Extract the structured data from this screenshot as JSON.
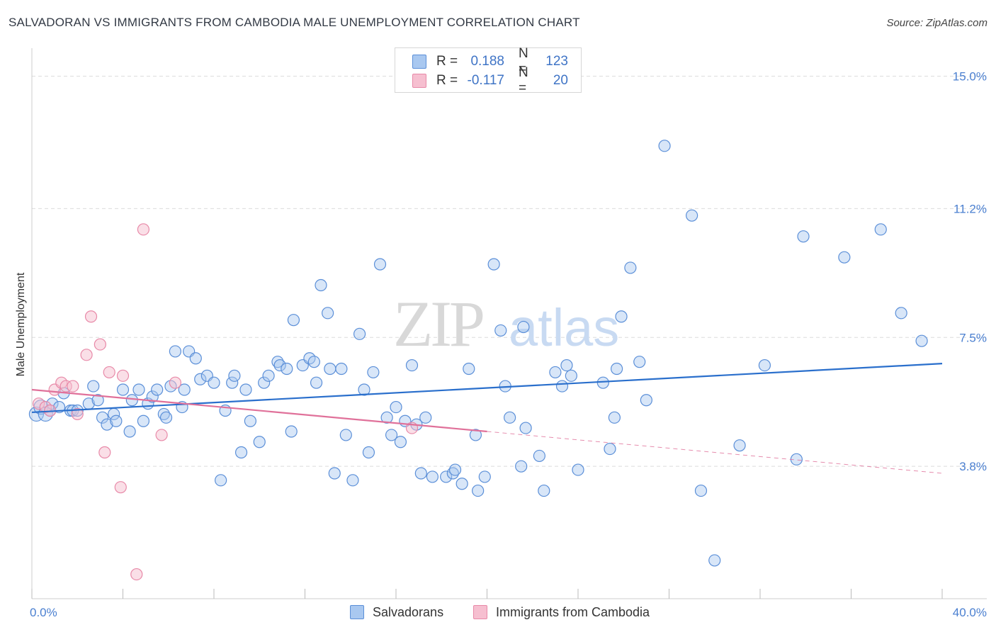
{
  "header": {
    "title": "SALVADORAN VS IMMIGRANTS FROM CAMBODIA MALE UNEMPLOYMENT CORRELATION CHART",
    "source": "Source: ZipAtlas.com"
  },
  "watermark": {
    "zip": "ZIP",
    "atlas": "atlas"
  },
  "colors": {
    "blue_fill": "#a9c8f0",
    "blue_stroke": "#5b8fd8",
    "blue_line": "#2a6fcc",
    "pink_fill": "#f6bfd0",
    "pink_stroke": "#e889a8",
    "pink_line": "#e0719a",
    "tick_text": "#4a7fd0",
    "grid": "#dcdcdc"
  },
  "legend": {
    "rows": [
      {
        "r_label": "R =",
        "r_value": "0.188",
        "n_label": "N =",
        "n_value": "123",
        "color": "#a9c8f0"
      },
      {
        "r_label": "R =",
        "r_value": "-0.117",
        "n_label": "N =",
        "n_value": "20",
        "color": "#f6bfd0"
      }
    ]
  },
  "bottom_legend": {
    "items": [
      {
        "label": "Salvadorans",
        "color": "#a9c8f0"
      },
      {
        "label": "Immigrants from Cambodia",
        "color": "#f6bfd0"
      }
    ]
  },
  "chart_data": {
    "type": "scatter",
    "title": "SALVADORAN VS IMMIGRANTS FROM CAMBODIA MALE UNEMPLOYMENT CORRELATION CHART",
    "xlabel": "",
    "ylabel": "Male Unemployment",
    "xlim": [
      0,
      40
    ],
    "ylim": [
      0,
      15.6
    ],
    "x_tick_labels": [
      {
        "value": 0,
        "label": "0.0%"
      },
      {
        "value": 40,
        "label": "40.0%"
      }
    ],
    "y_ticks": [
      {
        "value": 3.8,
        "label": "3.8%"
      },
      {
        "value": 7.5,
        "label": "7.5%"
      },
      {
        "value": 11.2,
        "label": "11.2%"
      },
      {
        "value": 15.0,
        "label": "15.0%"
      }
    ],
    "x_minor_ticks": [
      0,
      4,
      8,
      12,
      16,
      20,
      24,
      28,
      32,
      36,
      40
    ],
    "series": [
      {
        "name": "Salvadorans",
        "r": 0.188,
        "n": 123,
        "trend": {
          "x": [
            0,
            40
          ],
          "y": [
            5.35,
            6.75
          ],
          "dashed_from": null
        },
        "points": [
          [
            0.2,
            5.3
          ],
          [
            0.4,
            5.5
          ],
          [
            0.6,
            5.3
          ],
          [
            0.8,
            5.4
          ],
          [
            0.9,
            5.6
          ],
          [
            1.2,
            5.5
          ],
          [
            1.4,
            5.9
          ],
          [
            1.7,
            5.4
          ],
          [
            1.8,
            5.4
          ],
          [
            2.5,
            5.6
          ],
          [
            2.7,
            6.1
          ],
          [
            2.9,
            5.7
          ],
          [
            3.1,
            5.2
          ],
          [
            3.3,
            5.0
          ],
          [
            3.6,
            5.3
          ],
          [
            3.7,
            5.1
          ],
          [
            4.0,
            6.0
          ],
          [
            4.3,
            4.8
          ],
          [
            4.4,
            5.7
          ],
          [
            4.7,
            6.0
          ],
          [
            4.9,
            5.1
          ],
          [
            5.1,
            5.6
          ],
          [
            5.3,
            5.8
          ],
          [
            5.5,
            6.0
          ],
          [
            5.8,
            5.3
          ],
          [
            5.9,
            5.2
          ],
          [
            6.1,
            6.1
          ],
          [
            6.3,
            7.1
          ],
          [
            6.6,
            5.5
          ],
          [
            6.7,
            6.0
          ],
          [
            6.9,
            7.1
          ],
          [
            7.2,
            6.9
          ],
          [
            7.4,
            6.3
          ],
          [
            7.7,
            6.4
          ],
          [
            8.0,
            6.2
          ],
          [
            8.3,
            3.4
          ],
          [
            8.5,
            5.4
          ],
          [
            8.8,
            6.2
          ],
          [
            8.9,
            6.4
          ],
          [
            9.2,
            4.2
          ],
          [
            9.4,
            6.0
          ],
          [
            9.6,
            5.1
          ],
          [
            10.0,
            4.5
          ],
          [
            10.2,
            6.2
          ],
          [
            10.4,
            6.4
          ],
          [
            10.8,
            6.8
          ],
          [
            10.9,
            6.7
          ],
          [
            11.2,
            6.6
          ],
          [
            11.4,
            4.8
          ],
          [
            11.5,
            8.0
          ],
          [
            11.9,
            6.7
          ],
          [
            12.2,
            6.9
          ],
          [
            12.4,
            6.8
          ],
          [
            12.5,
            6.2
          ],
          [
            12.7,
            9.0
          ],
          [
            13.0,
            8.2
          ],
          [
            13.1,
            6.6
          ],
          [
            13.3,
            3.6
          ],
          [
            13.6,
            6.6
          ],
          [
            13.8,
            4.7
          ],
          [
            14.1,
            3.4
          ],
          [
            14.4,
            7.6
          ],
          [
            14.6,
            6.0
          ],
          [
            14.8,
            4.2
          ],
          [
            15.0,
            6.5
          ],
          [
            15.3,
            9.6
          ],
          [
            15.6,
            5.2
          ],
          [
            15.8,
            4.7
          ],
          [
            16.0,
            5.5
          ],
          [
            16.2,
            4.5
          ],
          [
            16.4,
            5.1
          ],
          [
            16.7,
            6.7
          ],
          [
            16.9,
            5.0
          ],
          [
            17.1,
            3.6
          ],
          [
            17.3,
            5.2
          ],
          [
            17.6,
            3.5
          ],
          [
            18.2,
            3.5
          ],
          [
            18.5,
            3.6
          ],
          [
            18.6,
            3.7
          ],
          [
            18.9,
            3.3
          ],
          [
            19.2,
            6.6
          ],
          [
            19.5,
            4.7
          ],
          [
            19.6,
            3.1
          ],
          [
            19.9,
            3.5
          ],
          [
            20.3,
            9.6
          ],
          [
            20.6,
            7.7
          ],
          [
            20.8,
            6.1
          ],
          [
            21.0,
            5.2
          ],
          [
            21.5,
            3.8
          ],
          [
            21.6,
            7.8
          ],
          [
            21.7,
            4.9
          ],
          [
            22.3,
            4.1
          ],
          [
            22.5,
            3.1
          ],
          [
            23.0,
            6.5
          ],
          [
            23.3,
            6.1
          ],
          [
            23.5,
            6.7
          ],
          [
            23.7,
            6.4
          ],
          [
            24.0,
            3.7
          ],
          [
            25.1,
            6.2
          ],
          [
            25.4,
            4.3
          ],
          [
            25.6,
            5.2
          ],
          [
            25.7,
            6.6
          ],
          [
            25.9,
            8.1
          ],
          [
            26.3,
            9.5
          ],
          [
            26.7,
            6.8
          ],
          [
            27.0,
            5.7
          ],
          [
            27.8,
            13.0
          ],
          [
            29.0,
            11.0
          ],
          [
            29.4,
            3.1
          ],
          [
            30.0,
            1.1
          ],
          [
            31.1,
            4.4
          ],
          [
            32.2,
            6.7
          ],
          [
            33.6,
            4.0
          ],
          [
            33.9,
            10.4
          ],
          [
            35.7,
            9.8
          ],
          [
            37.3,
            10.6
          ],
          [
            38.2,
            8.2
          ],
          [
            39.1,
            7.4
          ],
          [
            2.0,
            5.4
          ]
        ]
      },
      {
        "name": "Immigrants from Cambodia",
        "r": -0.117,
        "n": 20,
        "trend": {
          "x": [
            0,
            40
          ],
          "y": [
            6.0,
            3.6
          ],
          "dashed_from": 20
        },
        "points": [
          [
            0.3,
            5.6
          ],
          [
            0.6,
            5.5
          ],
          [
            0.8,
            5.4
          ],
          [
            1.0,
            6.0
          ],
          [
            1.3,
            6.2
          ],
          [
            1.5,
            6.1
          ],
          [
            1.8,
            6.1
          ],
          [
            2.0,
            5.3
          ],
          [
            2.6,
            8.1
          ],
          [
            3.0,
            7.3
          ],
          [
            3.2,
            4.2
          ],
          [
            3.4,
            6.5
          ],
          [
            3.9,
            3.2
          ],
          [
            4.0,
            6.4
          ],
          [
            4.6,
            0.7
          ],
          [
            4.9,
            10.6
          ],
          [
            5.7,
            4.7
          ],
          [
            6.3,
            6.2
          ],
          [
            2.4,
            7.0
          ],
          [
            16.7,
            4.9
          ]
        ]
      }
    ]
  }
}
